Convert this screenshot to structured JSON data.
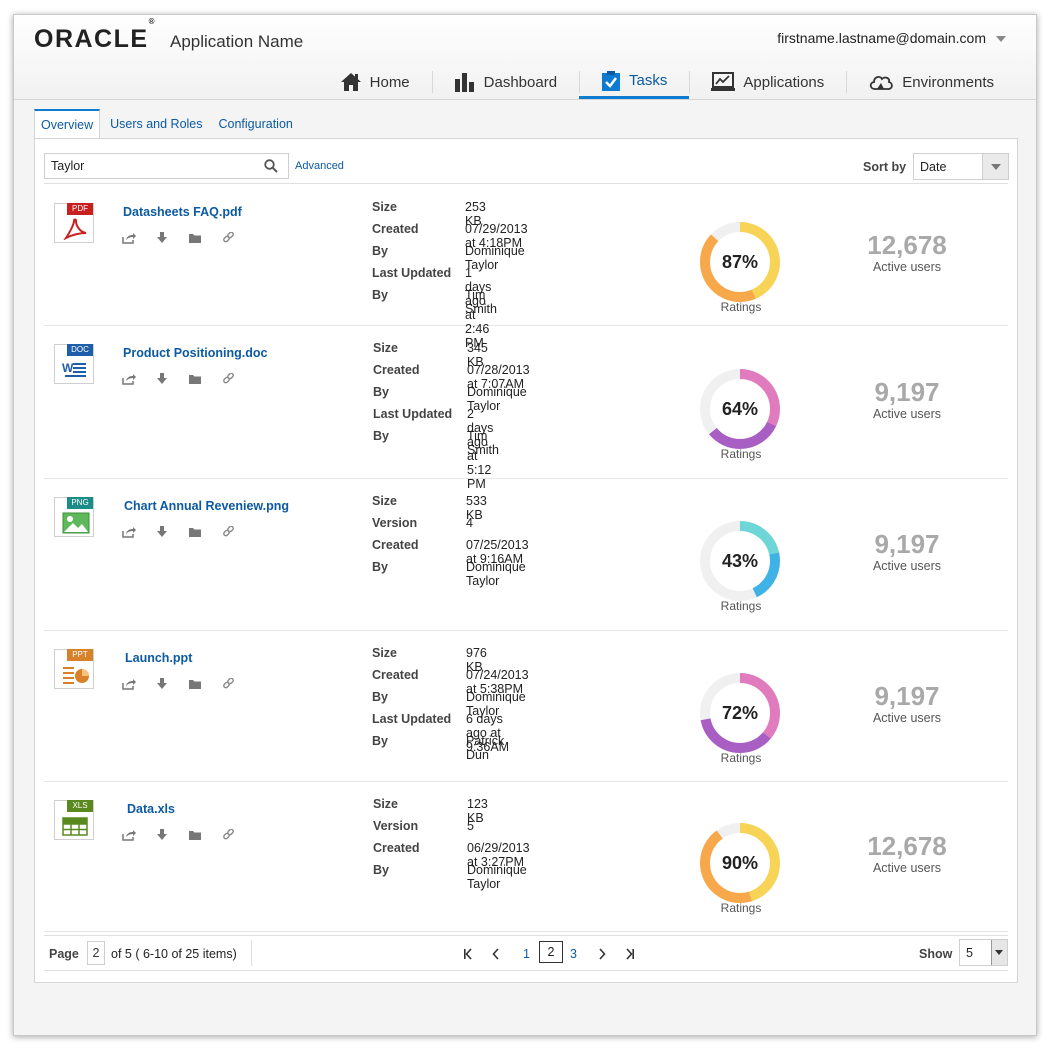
{
  "header": {
    "logo": "ORACLE",
    "logo_mark": "®",
    "app_name": "Application Name",
    "user_email": "firstname.lastname@domain.com"
  },
  "nav": [
    {
      "label": "Home",
      "icon": "home-icon"
    },
    {
      "label": "Dashboard",
      "icon": "bar-chart-icon"
    },
    {
      "label": "Tasks",
      "icon": "clipboard-check-icon",
      "active": true
    },
    {
      "label": "Applications",
      "icon": "monitor-chart-icon"
    },
    {
      "label": "Environments",
      "icon": "cloud-icon"
    }
  ],
  "tabs": [
    {
      "label": "Overview",
      "active": true
    },
    {
      "label": "Users and Roles"
    },
    {
      "label": "Configuration"
    }
  ],
  "toolbar": {
    "search_value": "Taylor",
    "advanced_label": "Advanced",
    "sort_label": "Sort by",
    "sort_value": "Date"
  },
  "files": [
    {
      "type": "PDF",
      "badge_color": "#c8201e",
      "name": "Datasheets FAQ.pdf",
      "meta": [
        [
          "Size",
          "253 KB"
        ],
        [
          "Created",
          "07/29/2013 at 4:18PM"
        ],
        [
          "By",
          "Dominique Taylor"
        ],
        [
          "Last Updated",
          "1 days ago at 2:46 PM"
        ],
        [
          "By",
          "Tim Smith"
        ]
      ],
      "rating": {
        "percent": 87,
        "label": "87%",
        "colors": [
          "#f7d356",
          "#f7a84a"
        ]
      },
      "ratings_label": "Ratings",
      "active_users": "12,678",
      "active_users_label": "Active users"
    },
    {
      "type": "DOC",
      "badge_color": "#1f5ea8",
      "name": "Product Positioning.doc",
      "meta": [
        [
          "Size",
          "345 KB"
        ],
        [
          "Created",
          "07/28/2013 at 7:07AM"
        ],
        [
          "By",
          "Dominique Taylor"
        ],
        [
          "Last Updated",
          "2 days ago at 5:12 PM"
        ],
        [
          "By",
          "Tim Smith"
        ]
      ],
      "rating": {
        "percent": 64,
        "label": "64%",
        "colors": [
          "#e07cbe",
          "#a95ec4"
        ]
      },
      "ratings_label": "Ratings",
      "active_users": "9,197",
      "active_users_label": "Active users"
    },
    {
      "type": "PNG",
      "badge_color": "#1b8c87",
      "name": "Chart Annual Reveniew.png",
      "meta": [
        [
          "Size",
          "533 KB"
        ],
        [
          "Version",
          "4"
        ],
        [
          "Created",
          "07/25/2013 at 9:16AM"
        ],
        [
          "By",
          "Dominique Taylor"
        ]
      ],
      "rating": {
        "percent": 43,
        "label": "43%",
        "colors": [
          "#6fd6d8",
          "#3fb3e6"
        ]
      },
      "ratings_label": "Ratings",
      "active_users": "9,197",
      "active_users_label": "Active users"
    },
    {
      "type": "PPT",
      "badge_color": "#d9802b",
      "name": "Launch.ppt",
      "meta": [
        [
          "Size",
          "976 KB"
        ],
        [
          "Created",
          "07/24/2013 at 5:38PM"
        ],
        [
          "By",
          "Dominique Taylor"
        ],
        [
          "Last Updated",
          "6 days ago at 9:36AM"
        ],
        [
          "By",
          "Patrick Dun"
        ]
      ],
      "rating": {
        "percent": 72,
        "label": "72%",
        "colors": [
          "#e07cbe",
          "#a95ec4"
        ]
      },
      "ratings_label": "Ratings",
      "active_users": "9,197",
      "active_users_label": "Active users"
    },
    {
      "type": "XLS",
      "badge_color": "#5a8a1f",
      "name": "Data.xls",
      "meta": [
        [
          "Size",
          "123 KB"
        ],
        [
          "Version",
          "5"
        ],
        [
          "Created",
          "06/29/2013 at 3:27PM"
        ],
        [
          "By",
          "Dominique Taylor"
        ]
      ],
      "rating": {
        "percent": 90,
        "label": "90%",
        "colors": [
          "#f7d356",
          "#f7a84a"
        ]
      },
      "ratings_label": "Ratings",
      "active_users": "12,678",
      "active_users_label": "Active users"
    }
  ],
  "pager": {
    "page_label": "Page",
    "page_value": "2",
    "of_text": "of 5 ( 6-10 of 25 items)",
    "pages": [
      "1",
      "2",
      "3"
    ],
    "current": "2",
    "show_label": "Show",
    "show_value": "5"
  }
}
